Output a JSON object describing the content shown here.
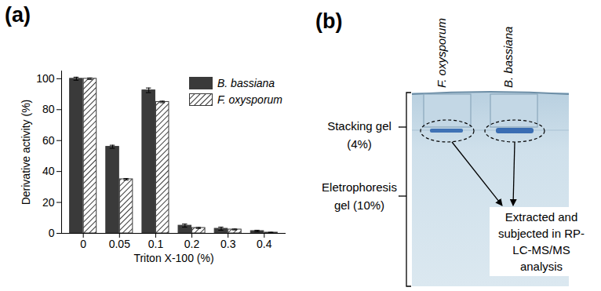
{
  "chart_data": {
    "type": "bar",
    "title": "(a)",
    "x_label": "Triton X-100 (%)",
    "y_label": "Derivative activity (%)",
    "categories": [
      "0",
      "0.05",
      "0.1",
      "0.2",
      "0.3",
      "0.4"
    ],
    "series": [
      {
        "name": "B. bassiana",
        "color": "#3a3a3a",
        "values": [
          100,
          56,
          92.5,
          5,
          3,
          1.5
        ],
        "errors": [
          1,
          1,
          1.5,
          1,
          1,
          0.5
        ]
      },
      {
        "name": "F. oxysporum",
        "color": "#3a3a3a",
        "values": [
          100,
          35,
          85,
          3.5,
          2.5,
          0.5
        ],
        "errors": [
          0.5,
          0.5,
          0.5,
          0.3,
          0.3,
          0.2
        ]
      }
    ],
    "ylim": [
      0,
      105
    ],
    "yticks": [
      0,
      20,
      40,
      60,
      80,
      100
    ],
    "grid": false,
    "legend": "top-right"
  },
  "panel_b": {
    "title": "(b)",
    "lanes": [
      "F. oxysporum",
      "B. bassiana"
    ],
    "gel_labels": [
      [
        "Stacking gel",
        "(4%)"
      ],
      [
        "Eletrophoresis",
        "gel (10%)"
      ]
    ],
    "annotation": [
      "Extracted and",
      "subjected in RP-",
      "LC-MS/MS",
      "analysis"
    ]
  }
}
